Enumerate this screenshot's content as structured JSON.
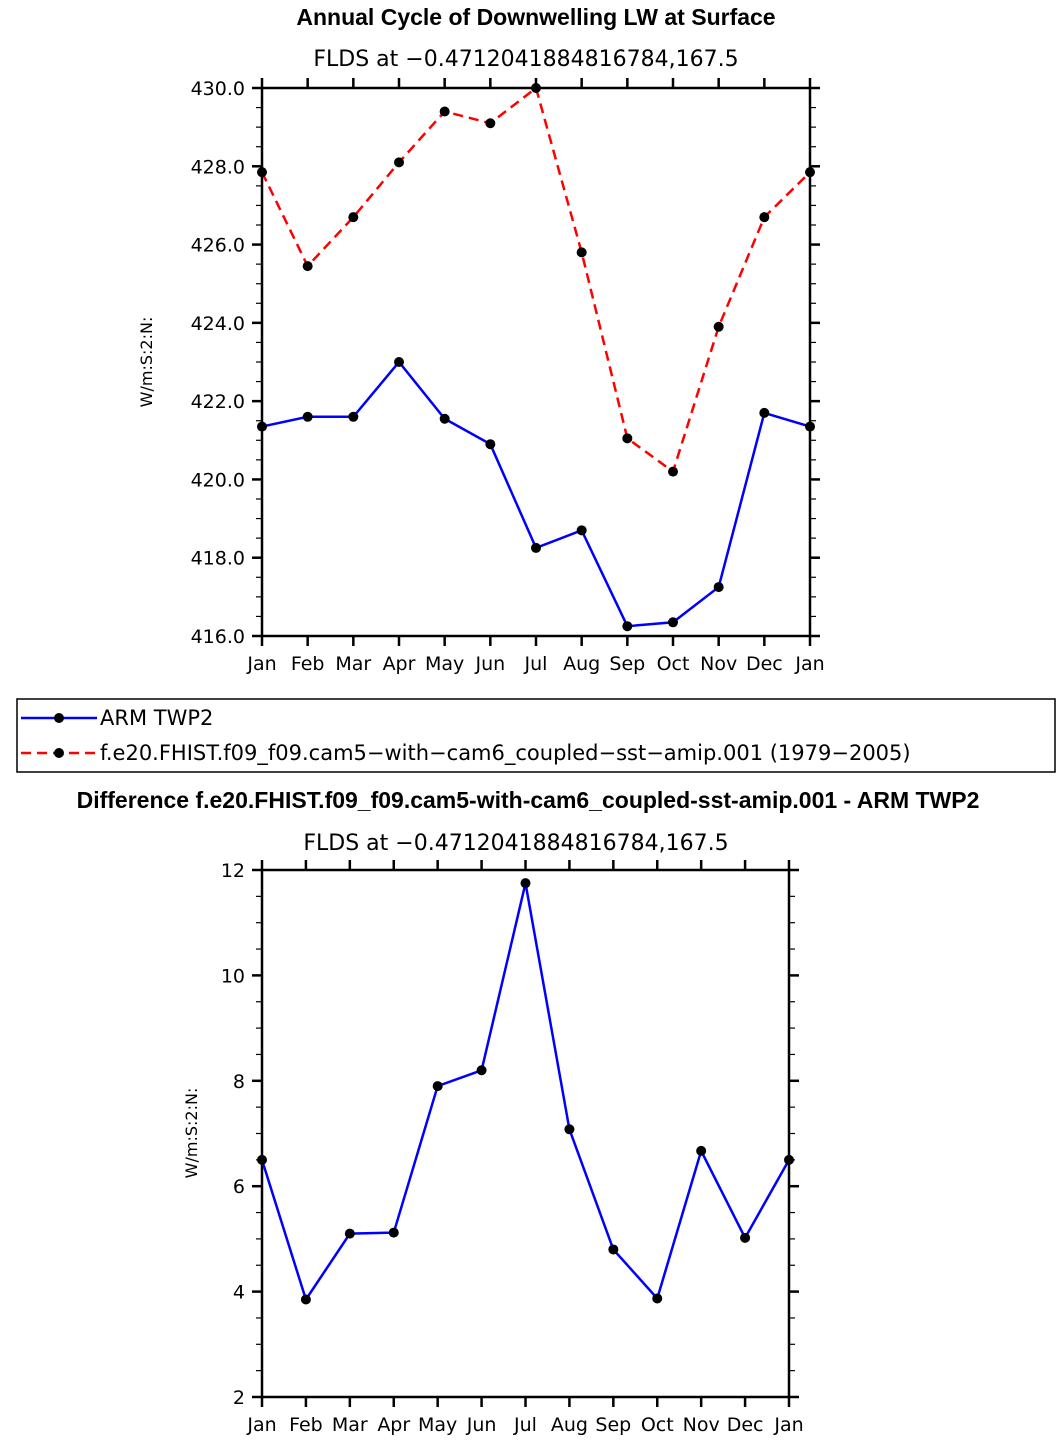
{
  "chart_data": [
    {
      "type": "line",
      "title": "Annual Cycle of Downwelling LW at Surface",
      "subtitle": "FLDS at −0.4712041884816784,167.5",
      "xlabel": "",
      "ylabel": "W/m:S:2:N:",
      "categories": [
        "Jan",
        "Feb",
        "Mar",
        "Apr",
        "May",
        "Jun",
        "Jul",
        "Aug",
        "Sep",
        "Oct",
        "Nov",
        "Dec",
        "Jan"
      ],
      "ylim": [
        416,
        430
      ],
      "yticks": [
        "416.0",
        "418.0",
        "420.0",
        "422.0",
        "424.0",
        "426.0",
        "428.0",
        "430.0"
      ],
      "series": [
        {
          "name": "ARM TWP2",
          "color": "#0000ff",
          "dash": "solid",
          "values": [
            421.35,
            421.6,
            421.6,
            423.0,
            421.55,
            420.9,
            418.25,
            418.7,
            416.25,
            416.35,
            417.25,
            421.7,
            421.35
          ]
        },
        {
          "name": "f.e20.FHIST.f09_f09.cam5−with−cam6_coupled−sst−amip.001 (1979−2005)",
          "color": "#ff0000",
          "dash": "dashed",
          "values": [
            427.85,
            425.45,
            426.7,
            428.1,
            429.4,
            429.1,
            430.0,
            425.8,
            421.05,
            420.2,
            423.9,
            426.7,
            427.85
          ]
        }
      ]
    },
    {
      "type": "line",
      "title": "Difference f.e20.FHIST.f09_f09.cam5-with-cam6_coupled-sst-amip.001 - ARM TWP2",
      "subtitle": "FLDS at −0.4712041884816784,167.5",
      "xlabel": "",
      "ylabel": "W/m:S:2:N:",
      "categories": [
        "Jan",
        "Feb",
        "Mar",
        "Apr",
        "May",
        "Jun",
        "Jul",
        "Aug",
        "Sep",
        "Oct",
        "Nov",
        "Dec",
        "Jan"
      ],
      "ylim": [
        2,
        12
      ],
      "yticks": [
        "2",
        "4",
        "6",
        "8",
        "10",
        "12"
      ],
      "series": [
        {
          "name": "Difference",
          "color": "#0000ff",
          "dash": "solid",
          "values": [
            6.5,
            3.85,
            5.1,
            5.12,
            7.9,
            8.2,
            11.75,
            7.08,
            4.8,
            3.87,
            6.67,
            5.02,
            6.5
          ]
        }
      ]
    }
  ]
}
